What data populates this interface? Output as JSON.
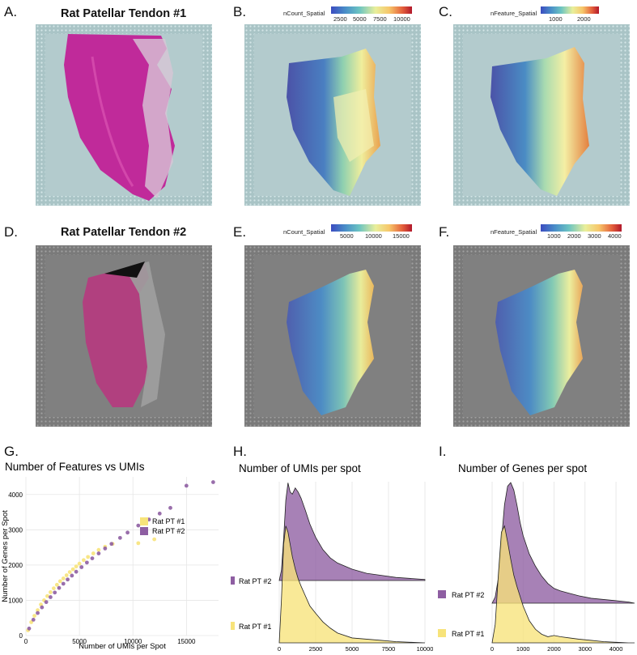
{
  "panels": {
    "A": {
      "label": "A.",
      "title": "Rat Patellar Tendon #1"
    },
    "B": {
      "label": "B.",
      "legend_title": "nCount_Spatial",
      "ticks": [
        "2500",
        "5000",
        "7500",
        "10000"
      ]
    },
    "C": {
      "label": "C.",
      "legend_title": "nFeature_Spatial",
      "ticks": [
        "1000",
        "2000"
      ]
    },
    "D": {
      "label": "D.",
      "title": "Rat Patellar Tendon #2"
    },
    "E": {
      "label": "E.",
      "legend_title": "nCount_Spatial",
      "ticks": [
        "5000",
        "10000",
        "15000"
      ]
    },
    "F": {
      "label": "F.",
      "legend_title": "nFeature_Spatial",
      "ticks": [
        "1000",
        "2000",
        "3000",
        "4000"
      ]
    },
    "G": {
      "label": "G."
    },
    "H": {
      "label": "H."
    },
    "I": {
      "label": "I."
    }
  },
  "colors": {
    "pt1": "#f7e37a",
    "pt2": "#8e5ea2",
    "tissue_he": "#c02a9a",
    "slide1": "#a9c4c6",
    "slide2": "#7a7a7a"
  },
  "chart_data": [
    {
      "id": "G",
      "type": "scatter",
      "title": "Number of Features vs UMIs",
      "xlabel": "Number of UMIs per Spot",
      "ylabel": "Number of Genes per Spot",
      "xlim": [
        0,
        18000
      ],
      "ylim": [
        0,
        4500
      ],
      "xticks": [
        0,
        5000,
        10000,
        15000
      ],
      "yticks": [
        0,
        1000,
        2000,
        3000,
        4000
      ],
      "legend": [
        "Rat PT #1",
        "Rat PT #2"
      ],
      "series": [
        {
          "name": "Rat PT #1",
          "x": [
            200,
            500,
            800,
            1100,
            1400,
            1700,
            2000,
            2300,
            2600,
            2900,
            3200,
            3500,
            3800,
            4100,
            4400,
            4700,
            5000,
            5400,
            5800,
            6300,
            6800,
            7400,
            8100,
            10500,
            12000
          ],
          "y": [
            150,
            380,
            560,
            720,
            880,
            1000,
            1120,
            1230,
            1340,
            1440,
            1540,
            1620,
            1710,
            1800,
            1880,
            1960,
            2040,
            2140,
            2230,
            2330,
            2430,
            2520,
            2600,
            2620,
            2730
          ]
        },
        {
          "name": "Rat PT #2",
          "x": [
            300,
            700,
            1100,
            1500,
            1900,
            2300,
            2700,
            3100,
            3500,
            3900,
            4300,
            4700,
            5200,
            5700,
            6200,
            6800,
            7400,
            8000,
            8800,
            9500,
            10500,
            11500,
            12500,
            13500,
            15000,
            17500
          ],
          "y": [
            200,
            450,
            640,
            800,
            950,
            1090,
            1220,
            1350,
            1470,
            1590,
            1700,
            1810,
            1940,
            2070,
            2190,
            2330,
            2470,
            2600,
            2770,
            2920,
            3120,
            3290,
            3460,
            3620,
            4250,
            4350
          ]
        }
      ]
    },
    {
      "id": "H",
      "type": "area",
      "title": "Number of UMIs per spot",
      "xlim": [
        0,
        10000
      ],
      "xticks": [
        0,
        2500,
        5000,
        7500,
        10000
      ],
      "legend": [
        "Rat PT #2",
        "Rat PT #1"
      ],
      "x": [
        0,
        150,
        300,
        450,
        600,
        750,
        900,
        1100,
        1300,
        1500,
        1800,
        2100,
        2500,
        3000,
        3500,
        4000,
        5000,
        6000,
        7000,
        8000,
        9000,
        10000
      ],
      "series": [
        {
          "name": "Rat PT #1",
          "values": [
            0.0,
            0.35,
            0.8,
            0.95,
            0.9,
            0.8,
            0.7,
            0.6,
            0.52,
            0.46,
            0.38,
            0.3,
            0.24,
            0.17,
            0.12,
            0.08,
            0.04,
            0.03,
            0.02,
            0.01,
            0.005,
            0.0
          ]
        },
        {
          "name": "Rat PT #2",
          "values": [
            0.0,
            0.1,
            0.4,
            0.78,
            0.95,
            0.86,
            0.84,
            0.9,
            0.86,
            0.8,
            0.68,
            0.55,
            0.42,
            0.3,
            0.22,
            0.17,
            0.11,
            0.07,
            0.05,
            0.03,
            0.02,
            0.01
          ]
        }
      ]
    },
    {
      "id": "I",
      "type": "area",
      "title": "Number of Genes per spot",
      "xlim": [
        0,
        4600
      ],
      "xticks": [
        0,
        1000,
        2000,
        3000,
        4000
      ],
      "legend": [
        "Rat PT #2",
        "Rat PT #1"
      ],
      "x": [
        0,
        100,
        200,
        300,
        400,
        500,
        600,
        700,
        800,
        900,
        1000,
        1200,
        1400,
        1600,
        1800,
        2000,
        2200,
        2500,
        2800,
        3200,
        3600,
        4000,
        4400,
        4600
      ],
      "series": [
        {
          "name": "Rat PT #1",
          "values": [
            0.0,
            0.15,
            0.55,
            0.9,
            0.95,
            0.82,
            0.68,
            0.55,
            0.46,
            0.38,
            0.3,
            0.18,
            0.11,
            0.07,
            0.05,
            0.06,
            0.05,
            0.04,
            0.03,
            0.02,
            0.01,
            0.005,
            0.0,
            0.0
          ]
        },
        {
          "name": "Rat PT #2",
          "values": [
            0.0,
            0.05,
            0.2,
            0.5,
            0.8,
            0.95,
            0.98,
            0.92,
            0.8,
            0.66,
            0.55,
            0.4,
            0.3,
            0.22,
            0.16,
            0.12,
            0.1,
            0.08,
            0.06,
            0.04,
            0.03,
            0.02,
            0.01,
            0.0
          ]
        }
      ]
    }
  ]
}
